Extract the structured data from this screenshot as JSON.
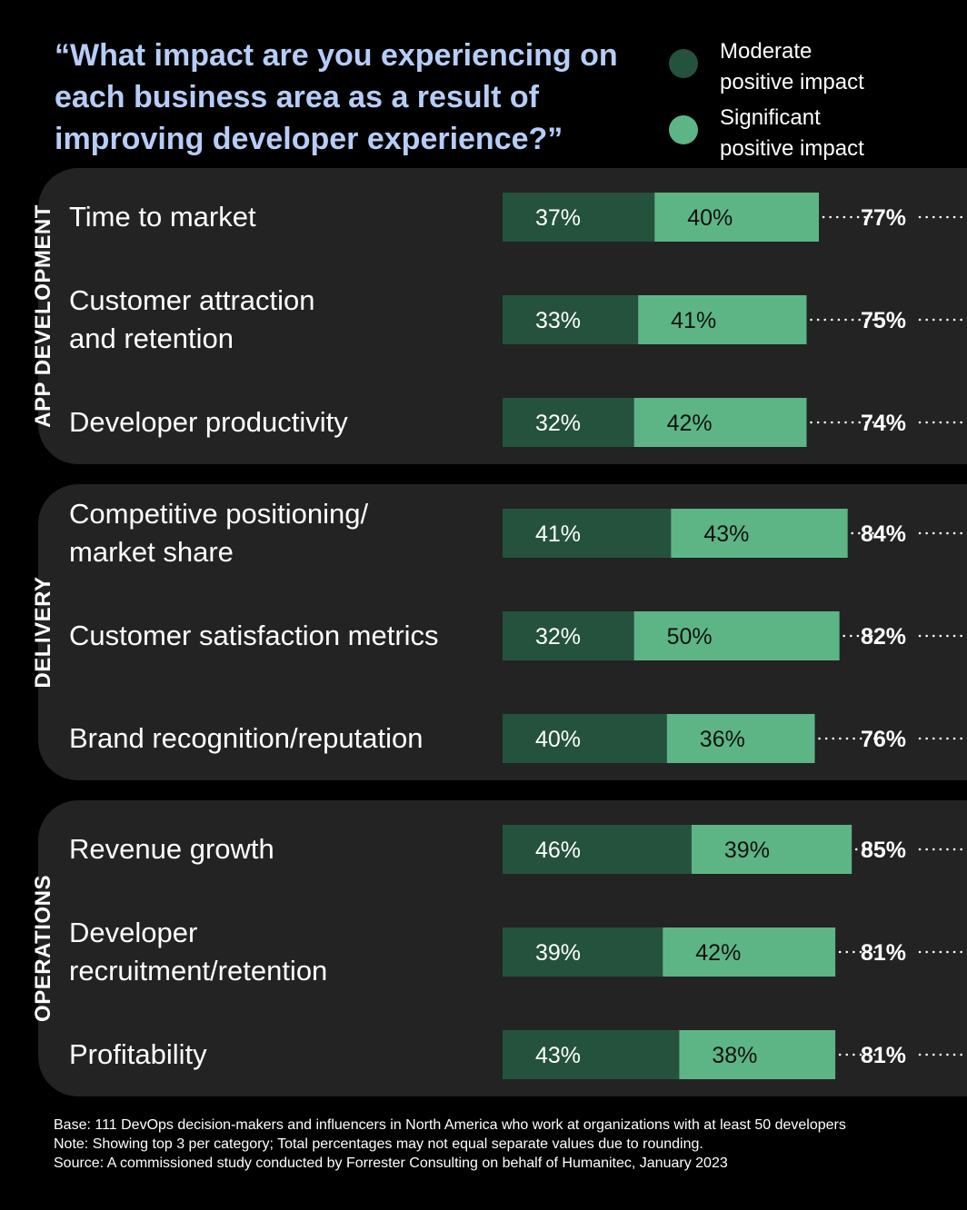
{
  "title": "“What impact are you experiencing on each business area as a result of improving developer experience?”",
  "legend": [
    {
      "label": "Moderate\npositive impact",
      "color": "#24523d"
    },
    {
      "label": "Significant\npositive impact",
      "color": "#5db585"
    }
  ],
  "chart_data": {
    "type": "bar",
    "orientation": "horizontal",
    "stacked": true,
    "title": "“What impact are you experiencing on each business area as a result of improving developer experience?”",
    "series_names": [
      "Moderate positive impact",
      "Significant positive impact"
    ],
    "groups": [
      {
        "name": "APP DEVELOPMENT",
        "rows": [
          {
            "label": "Time to market",
            "moderate": 37,
            "significant": 40,
            "total": 77
          },
          {
            "label": "Customer attraction\nand retention",
            "moderate": 33,
            "significant": 41,
            "total": 75
          },
          {
            "label": "Developer productivity",
            "moderate": 32,
            "significant": 42,
            "total": 74
          }
        ]
      },
      {
        "name": "DELIVERY",
        "rows": [
          {
            "label": "Competitive positioning/\nmarket share",
            "moderate": 41,
            "significant": 43,
            "total": 84
          },
          {
            "label": "Customer satisfaction metrics",
            "moderate": 32,
            "significant": 50,
            "total": 82
          },
          {
            "label": "Brand recognition/reputation",
            "moderate": 40,
            "significant": 36,
            "total": 76
          }
        ]
      },
      {
        "name": "OPERATIONS",
        "rows": [
          {
            "label": "Revenue growth",
            "moderate": 46,
            "significant": 39,
            "total": 85
          },
          {
            "label": "Developer\nrecruitment/retention",
            "moderate": 39,
            "significant": 42,
            "total": 81
          },
          {
            "label": "Profitability",
            "moderate": 43,
            "significant": 38,
            "total": 81
          }
        ]
      }
    ],
    "value_suffix": "%"
  },
  "footer": {
    "base": "Base: 111 DevOps decision-makers and influencers in North America who work at organizations with at least 50 developers",
    "note": "Note: Showing top 3 per category; Total percentages may not equal separate values due to rounding.",
    "source": "Source: A commissioned study conducted by Forrester Consulting on behalf of Humanitec, January 2023"
  }
}
